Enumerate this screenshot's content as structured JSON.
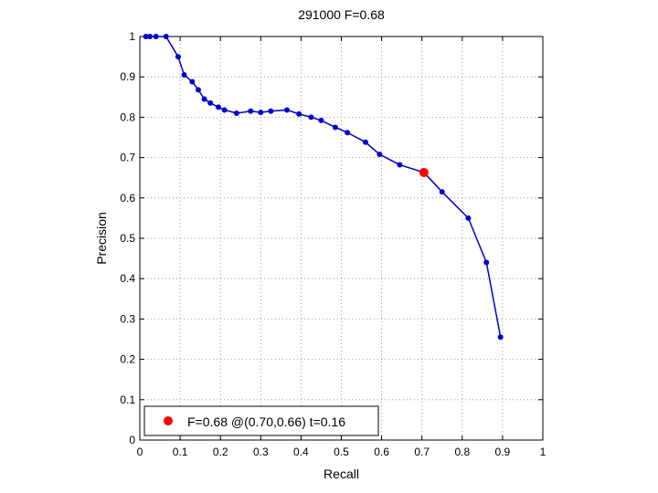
{
  "chart_data": {
    "type": "line",
    "title": "291000 F=0.68",
    "xlabel": "Recall",
    "ylabel": "Precision",
    "xlim": [
      0,
      1
    ],
    "ylim": [
      0,
      1
    ],
    "xticks": [
      "0",
      "0.1",
      "0.2",
      "0.3",
      "0.4",
      "0.5",
      "0.6",
      "0.7",
      "0.8",
      "0.9",
      "1"
    ],
    "yticks": [
      "0",
      "0.1",
      "0.2",
      "0.3",
      "0.4",
      "0.5",
      "0.6",
      "0.7",
      "0.8",
      "0.9",
      "1"
    ],
    "grid": true,
    "series_color": "#0000cc",
    "highlight_color": "#ff0000",
    "series": [
      {
        "points": [
          [
            0.015,
            1.0
          ],
          [
            0.025,
            1.0
          ],
          [
            0.04,
            1.0
          ],
          [
            0.065,
            1.0
          ],
          [
            0.095,
            0.95
          ],
          [
            0.11,
            0.905
          ],
          [
            0.13,
            0.888
          ],
          [
            0.145,
            0.868
          ],
          [
            0.16,
            0.845
          ],
          [
            0.175,
            0.835
          ],
          [
            0.195,
            0.825
          ],
          [
            0.21,
            0.818
          ],
          [
            0.24,
            0.81
          ],
          [
            0.275,
            0.815
          ],
          [
            0.3,
            0.812
          ],
          [
            0.325,
            0.815
          ],
          [
            0.365,
            0.818
          ],
          [
            0.395,
            0.808
          ],
          [
            0.425,
            0.8
          ],
          [
            0.45,
            0.792
          ],
          [
            0.485,
            0.775
          ],
          [
            0.515,
            0.762
          ],
          [
            0.56,
            0.738
          ],
          [
            0.595,
            0.708
          ],
          [
            0.645,
            0.682
          ],
          [
            0.705,
            0.663
          ],
          [
            0.75,
            0.615
          ],
          [
            0.815,
            0.55
          ],
          [
            0.86,
            0.44
          ],
          [
            0.895,
            0.255
          ]
        ]
      }
    ],
    "highlight_point": [
      0.705,
      0.663
    ],
    "legend": {
      "position": "bottom-left",
      "entries": [
        "F=0.68 @(0.70,0.66) t=0.16"
      ]
    }
  }
}
